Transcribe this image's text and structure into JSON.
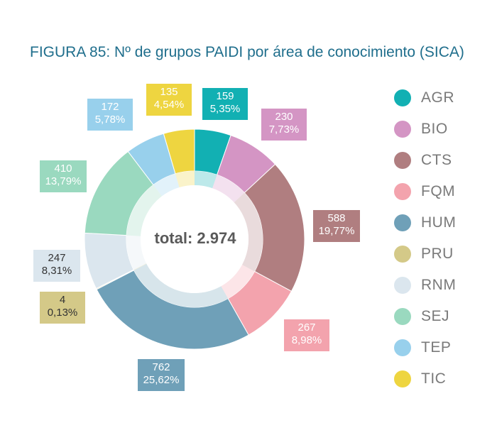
{
  "title": "FIGURA 85: Nº de grupos PAIDI por área de conocimiento (SICA)",
  "center_label": "total: 2.974",
  "chart_data": {
    "type": "pie",
    "title": "FIGURA 85: Nº de grupos PAIDI por área de conocimiento (SICA)",
    "total": 2974,
    "legend_position": "right",
    "slices": [
      {
        "name": "AGR",
        "value": 159,
        "percent": "5,35%",
        "color": "#12b0b3"
      },
      {
        "name": "BIO",
        "value": 230,
        "percent": "7,73%",
        "color": "#d495c4"
      },
      {
        "name": "CTS",
        "value": 588,
        "percent": "19,77%",
        "color": "#b07e80"
      },
      {
        "name": "FQM",
        "value": 267,
        "percent": "8,98%",
        "color": "#f3a3ad"
      },
      {
        "name": "HUM",
        "value": 762,
        "percent": "25,62%",
        "color": "#6fa0b8"
      },
      {
        "name": "PRU",
        "value": 4,
        "percent": "0,13%",
        "color": "#d4c988"
      },
      {
        "name": "RNM",
        "value": 247,
        "percent": "8,31%",
        "color": "#dbe6ee"
      },
      {
        "name": "SEJ",
        "value": 410,
        "percent": "13,79%",
        "color": "#9ad9bf"
      },
      {
        "name": "TEP",
        "value": 172,
        "percent": "5,78%",
        "color": "#98d0ec"
      },
      {
        "name": "TIC",
        "value": 135,
        "percent": "4,54%",
        "color": "#eed540"
      }
    ]
  }
}
